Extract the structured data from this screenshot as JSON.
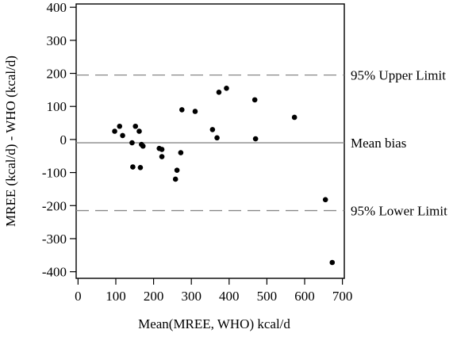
{
  "chart_data": {
    "type": "scatter",
    "title": "",
    "xlabel": "Mean(MREE, WHO) kcal/d",
    "ylabel": "MREE (kcal/d) - WHO (kcal/d)",
    "xlim": [
      -5,
      705
    ],
    "ylim": [
      -420,
      410
    ],
    "xticks": [
      0,
      100,
      200,
      300,
      400,
      500,
      600,
      700
    ],
    "yticks": [
      400,
      300,
      200,
      100,
      0,
      -100,
      -200,
      -300,
      -400
    ],
    "grid": false,
    "reference_lines": [
      {
        "label": "95% Upper Limit",
        "y": 195,
        "style": "dashed"
      },
      {
        "label": "Mean bias",
        "y": -10,
        "style": "solid"
      },
      {
        "label": "95% Lower Limit",
        "y": -215,
        "style": "dashed"
      }
    ],
    "points": [
      {
        "x": 97,
        "y": 25
      },
      {
        "x": 110,
        "y": 40
      },
      {
        "x": 118,
        "y": 12
      },
      {
        "x": 143,
        "y": -10
      },
      {
        "x": 152,
        "y": 40
      },
      {
        "x": 162,
        "y": 25
      },
      {
        "x": 168,
        "y": -15
      },
      {
        "x": 172,
        "y": -20
      },
      {
        "x": 145,
        "y": -83
      },
      {
        "x": 165,
        "y": -85
      },
      {
        "x": 215,
        "y": -27
      },
      {
        "x": 222,
        "y": -30
      },
      {
        "x": 222,
        "y": -52
      },
      {
        "x": 262,
        "y": -93
      },
      {
        "x": 258,
        "y": -120
      },
      {
        "x": 272,
        "y": -40
      },
      {
        "x": 275,
        "y": 90
      },
      {
        "x": 310,
        "y": 85
      },
      {
        "x": 356,
        "y": 30
      },
      {
        "x": 368,
        "y": 5
      },
      {
        "x": 373,
        "y": 143
      },
      {
        "x": 393,
        "y": 155
      },
      {
        "x": 468,
        "y": 120
      },
      {
        "x": 470,
        "y": 2
      },
      {
        "x": 573,
        "y": 67
      },
      {
        "x": 655,
        "y": -182
      },
      {
        "x": 673,
        "y": -372
      }
    ],
    "colors": {
      "points": "#000000",
      "axis": "#000000",
      "reference": "#888888"
    }
  }
}
